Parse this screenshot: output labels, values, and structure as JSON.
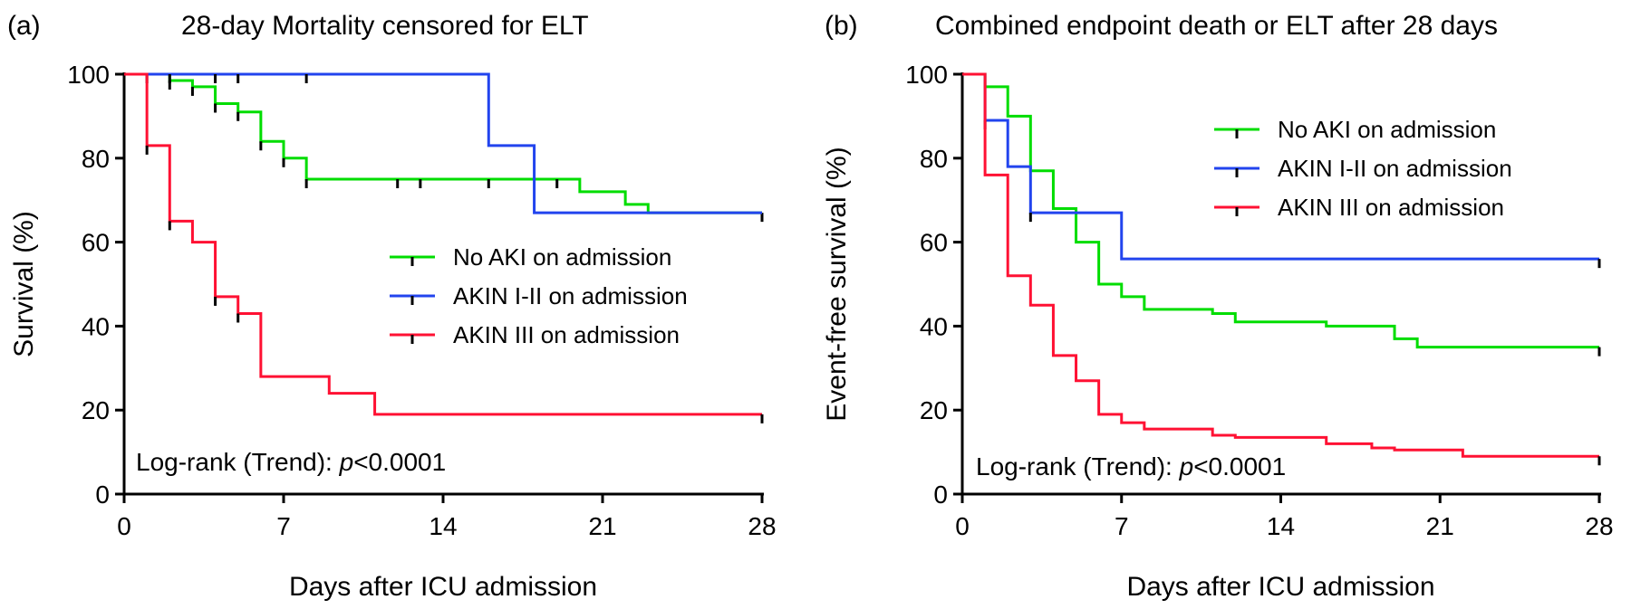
{
  "chart_data": [
    {
      "type": "line",
      "panel_label": "(a)",
      "title": "28-day Mortality censored for ELT",
      "xlabel": "Days after ICU admission",
      "ylabel": "Survival (%)",
      "xlim": [
        0,
        28
      ],
      "ylim": [
        0,
        100
      ],
      "xticks": [
        "0",
        "7",
        "14",
        "21",
        "28"
      ],
      "yticks": [
        "0",
        "20",
        "40",
        "60",
        "80",
        "100"
      ],
      "legend_placement": "center-right",
      "annotation_prefix": "Log-rank (Trend): ",
      "annotation_p": "p",
      "annotation_value": "<0.0001",
      "series": [
        {
          "name": "No AKI on admission",
          "color": "#00dd00",
          "steps": [
            [
              0,
              100
            ],
            [
              2,
              98.5
            ],
            [
              3,
              97
            ],
            [
              4,
              93
            ],
            [
              5,
              91
            ],
            [
              6,
              84
            ],
            [
              7,
              80
            ],
            [
              8,
              75
            ],
            [
              20,
              72
            ],
            [
              22,
              69
            ],
            [
              23,
              67
            ],
            [
              28,
              67
            ]
          ],
          "censor": [
            [
              1,
              100
            ],
            [
              2,
              98.5
            ],
            [
              3,
              97
            ],
            [
              4,
              93
            ],
            [
              5,
              91
            ],
            [
              6,
              84
            ],
            [
              7,
              80
            ],
            [
              8,
              75
            ],
            [
              12,
              75
            ],
            [
              13,
              75
            ],
            [
              16,
              75
            ],
            [
              19,
              75
            ],
            [
              28,
              67
            ]
          ]
        },
        {
          "name": "AKIN I-II on admission",
          "color": "#2244ee",
          "steps": [
            [
              0,
              100
            ],
            [
              16,
              83
            ],
            [
              18,
              67
            ],
            [
              28,
              67
            ]
          ],
          "censor": [
            [
              2,
              100
            ],
            [
              4,
              100
            ],
            [
              5,
              100
            ],
            [
              8,
              100
            ]
          ]
        },
        {
          "name": "AKIN III on admission",
          "color": "#ff1133",
          "steps": [
            [
              0,
              100
            ],
            [
              1,
              83
            ],
            [
              2,
              65
            ],
            [
              3,
              60
            ],
            [
              4,
              47
            ],
            [
              5,
              43
            ],
            [
              6,
              28
            ],
            [
              9,
              24
            ],
            [
              11,
              19
            ],
            [
              28,
              19
            ]
          ],
          "censor": [
            [
              1,
              83
            ],
            [
              2,
              65
            ],
            [
              4,
              47
            ],
            [
              5,
              43
            ],
            [
              28,
              19
            ]
          ]
        }
      ]
    },
    {
      "type": "line",
      "panel_label": "(b)",
      "title": "Combined endpoint death or ELT after 28 days",
      "xlabel": "Days after ICU admission",
      "ylabel": "Event-free survival (%)",
      "xlim": [
        0,
        28
      ],
      "ylim": [
        0,
        100
      ],
      "xticks": [
        "0",
        "7",
        "14",
        "21",
        "28"
      ],
      "yticks": [
        "0",
        "20",
        "40",
        "60",
        "80",
        "100"
      ],
      "legend_placement": "top-right",
      "annotation_prefix": "Log-rank (Trend): ",
      "annotation_p": "p",
      "annotation_value": "<0.0001",
      "series": [
        {
          "name": "No AKI on admission",
          "color": "#00dd00",
          "steps": [
            [
              0,
              100
            ],
            [
              1,
              97
            ],
            [
              2,
              90
            ],
            [
              3,
              77
            ],
            [
              4,
              68
            ],
            [
              5,
              60
            ],
            [
              6,
              50
            ],
            [
              7,
              47
            ],
            [
              8,
              44
            ],
            [
              11,
              43
            ],
            [
              12,
              41
            ],
            [
              16,
              40
            ],
            [
              19,
              37
            ],
            [
              20,
              35
            ],
            [
              28,
              35
            ]
          ],
          "censor": [
            [
              28,
              35
            ]
          ]
        },
        {
          "name": "AKIN I-II on admission",
          "color": "#2244ee",
          "steps": [
            [
              0,
              100
            ],
            [
              1,
              89
            ],
            [
              2,
              78
            ],
            [
              3,
              67
            ],
            [
              7,
              56
            ],
            [
              28,
              56
            ]
          ],
          "censor": [
            [
              1,
              89
            ],
            [
              3,
              67
            ],
            [
              28,
              56
            ]
          ]
        },
        {
          "name": "AKIN III on admission",
          "color": "#ff1133",
          "steps": [
            [
              0,
              100
            ],
            [
              1,
              76
            ],
            [
              2,
              52
            ],
            [
              3,
              45
            ],
            [
              4,
              33
            ],
            [
              5,
              27
            ],
            [
              6,
              19
            ],
            [
              7,
              17
            ],
            [
              8,
              15.5
            ],
            [
              11,
              14
            ],
            [
              12,
              13.5
            ],
            [
              16,
              12
            ],
            [
              18,
              11
            ],
            [
              19,
              10.5
            ],
            [
              22,
              9
            ],
            [
              28,
              9
            ]
          ],
          "censor": [
            [
              28,
              9
            ]
          ]
        }
      ]
    }
  ]
}
